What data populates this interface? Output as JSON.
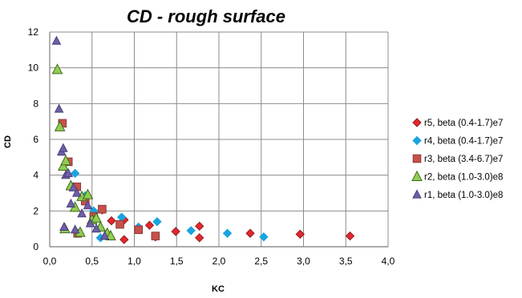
{
  "chart_data": {
    "type": "scatter",
    "title": "CD - rough surface",
    "xlabel": "KC",
    "ylabel": "CD",
    "xlim": [
      0,
      4
    ],
    "ylim": [
      0,
      12
    ],
    "x_ticks": [
      0,
      0.5,
      1,
      1.5,
      2,
      2.5,
      3,
      3.5,
      4
    ],
    "x_tick_labels": [
      "0,0",
      "0,5",
      "1,0",
      "1,5",
      "2,0",
      "2,5",
      "3,0",
      "3,5",
      "4,0"
    ],
    "y_ticks": [
      0,
      2,
      4,
      6,
      8,
      10,
      12
    ],
    "y_tick_labels": [
      "0",
      "2",
      "4",
      "6",
      "8",
      "10",
      "12"
    ],
    "grid": {
      "horizontal": true,
      "vertical": true
    },
    "legend_position": "right",
    "series": [
      {
        "name": "r5, beta (0.4-1.7)e7",
        "marker": "diamond",
        "fill": "#e0292e",
        "stroke": "#9b1b20",
        "size": 5,
        "points": [
          [
            0.62,
            2.05
          ],
          [
            0.73,
            1.45
          ],
          [
            0.88,
            1.5
          ],
          [
            0.88,
            0.4
          ],
          [
            1.05,
            1.0
          ],
          [
            1.18,
            1.2
          ],
          [
            1.25,
            0.55
          ],
          [
            1.49,
            0.85
          ],
          [
            1.77,
            1.15
          ],
          [
            1.77,
            0.5
          ],
          [
            2.37,
            0.75
          ],
          [
            2.96,
            0.7
          ],
          [
            3.55,
            0.6
          ]
        ]
      },
      {
        "name": "r4, beta (0.4-1.7)e7",
        "marker": "diamond",
        "fill": "#1aa3e0",
        "stroke": "#1aa3e0",
        "size": 5,
        "points": [
          [
            0.3,
            4.1
          ],
          [
            0.42,
            2.85
          ],
          [
            0.52,
            2.0
          ],
          [
            0.6,
            0.5
          ],
          [
            0.85,
            1.65
          ],
          [
            1.05,
            1.1
          ],
          [
            1.27,
            1.4
          ],
          [
            1.67,
            0.9
          ],
          [
            2.1,
            0.75
          ],
          [
            2.53,
            0.55
          ]
        ]
      },
      {
        "name": "r3, beta (3.4-6.7)e7",
        "marker": "square",
        "fill": "#c8504b",
        "stroke": "#8a3a38",
        "size": 4.8,
        "points": [
          [
            0.15,
            6.9
          ],
          [
            0.22,
            4.75
          ],
          [
            0.32,
            3.35
          ],
          [
            0.42,
            2.55
          ],
          [
            0.52,
            1.7
          ],
          [
            0.62,
            2.1
          ],
          [
            0.83,
            1.25
          ],
          [
            1.05,
            0.95
          ],
          [
            1.25,
            0.6
          ],
          [
            0.33,
            0.75
          ]
        ]
      },
      {
        "name": "r2, beta (1.0-3.0)e8",
        "marker": "triangle",
        "fill": "#92cc52",
        "stroke": "#3f6a1c",
        "size": 6,
        "points": [
          [
            0.09,
            9.9
          ],
          [
            0.12,
            6.7
          ],
          [
            0.16,
            4.5
          ],
          [
            0.19,
            4.8
          ],
          [
            0.25,
            3.4
          ],
          [
            0.3,
            2.2
          ],
          [
            0.38,
            2.8
          ],
          [
            0.45,
            2.9
          ],
          [
            0.5,
            1.5
          ],
          [
            0.55,
            1.6
          ],
          [
            0.6,
            1.1
          ],
          [
            0.68,
            0.75
          ],
          [
            0.72,
            0.6
          ],
          [
            0.18,
            1.0
          ],
          [
            0.36,
            0.8
          ]
        ]
      },
      {
        "name": "r1, beta (1.0-3.0)e8",
        "marker": "triangle",
        "fill": "#6f5fa8",
        "stroke": "#4a3f7a",
        "size": 5,
        "points": [
          [
            0.08,
            11.5
          ],
          [
            0.11,
            7.7
          ],
          [
            0.14,
            5.3
          ],
          [
            0.16,
            5.5
          ],
          [
            0.19,
            4.0
          ],
          [
            0.22,
            4.1
          ],
          [
            0.28,
            3.3
          ],
          [
            0.25,
            2.4
          ],
          [
            0.32,
            3.0
          ],
          [
            0.38,
            1.85
          ],
          [
            0.45,
            2.3
          ],
          [
            0.48,
            1.3
          ],
          [
            0.55,
            1.0
          ],
          [
            0.65,
            0.6
          ],
          [
            0.17,
            1.1
          ],
          [
            0.3,
            0.95
          ]
        ]
      }
    ]
  }
}
